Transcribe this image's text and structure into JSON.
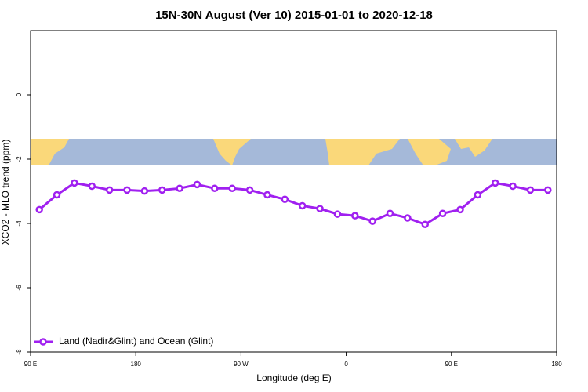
{
  "chart_data": {
    "type": "line",
    "title": "15N-30N August (Ver 10)   2015-01-01 to 2020-12-18",
    "xlabel": "Longitude (deg E)",
    "ylabel": "XCO2 - MLO trend (ppm)",
    "x": [
      97.5,
      112.5,
      127.5,
      142.5,
      157.5,
      172.5,
      187.5,
      202.5,
      217.5,
      232.5,
      247.5,
      262.5,
      277.5,
      292.5,
      307.5,
      322.5,
      337.5,
      352.5,
      367.5,
      382.5,
      397.5,
      412.5,
      427.5,
      442.5,
      457.5,
      472.5,
      487.5,
      502.5,
      517.5,
      532.5
    ],
    "series": [
      {
        "name": "Land (Nadir&Glint) and Ocean (Glint)",
        "color": "#a020f0",
        "values": [
          -3.57,
          -3.11,
          -2.74,
          -2.84,
          -2.96,
          -2.96,
          -2.99,
          -2.96,
          -2.91,
          -2.79,
          -2.91,
          -2.91,
          -2.96,
          -3.11,
          -3.25,
          -3.45,
          -3.54,
          -3.71,
          -3.76,
          -3.93,
          -3.69,
          -3.83,
          -4.03,
          -3.69,
          -3.57,
          -3.11,
          -2.74,
          -2.84,
          -2.96,
          -2.96
        ]
      }
    ],
    "xlim": [
      90,
      540
    ],
    "xticks": [
      {
        "value": 90,
        "label": "90 E"
      },
      {
        "value": 180,
        "label": "180"
      },
      {
        "value": 270,
        "label": "90 W"
      },
      {
        "value": 360,
        "label": "0"
      },
      {
        "value": 450,
        "label": "90 E"
      },
      {
        "value": 540,
        "label": "180"
      }
    ],
    "ylim": [
      -8,
      2
    ],
    "yticks": [
      -8,
      -6,
      -4,
      -2,
      0
    ],
    "legend": "bottom-left"
  }
}
